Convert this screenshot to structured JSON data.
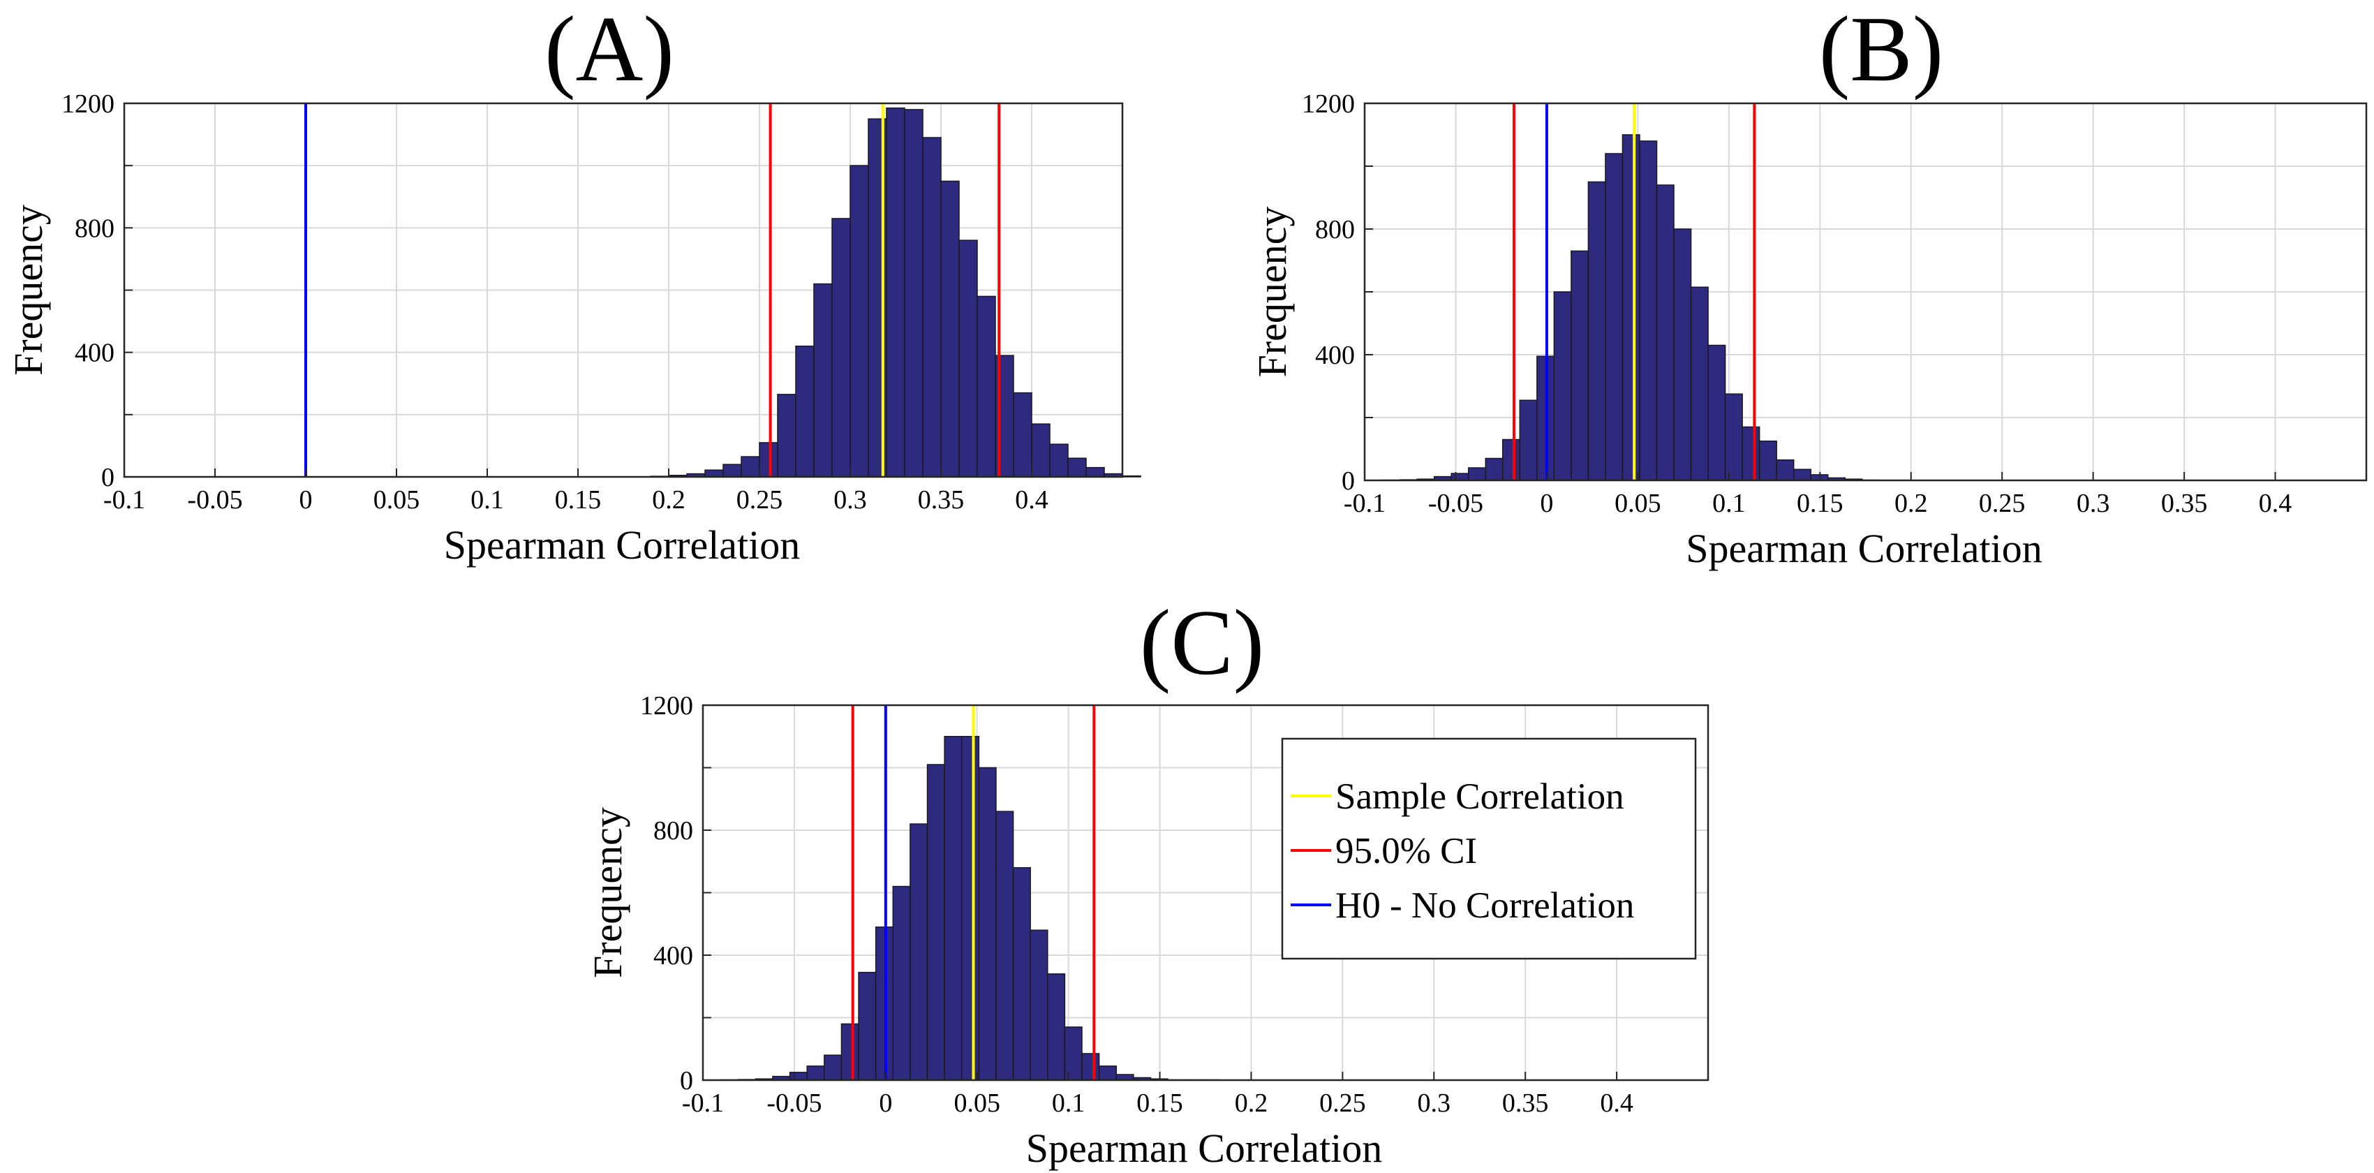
{
  "chart_data": [
    {
      "id": "A",
      "type": "bar",
      "title": "(A)",
      "xlabel": "Spearman Correlation",
      "ylabel": "Frequency",
      "xlim": [
        -0.1,
        0.45
      ],
      "ylim": [
        0,
        1200
      ],
      "xticks": [
        -0.1,
        -0.05,
        0,
        0.05,
        0.1,
        0.15,
        0.2,
        0.25,
        0.3,
        0.35,
        0.4
      ],
      "xtick_labels": [
        "-0.1",
        "-0.05",
        "0",
        "0.05",
        "0.1",
        "0.15",
        "0.2",
        "0.25",
        "0.3",
        "0.35",
        "0.4"
      ],
      "yticks": [
        0,
        200,
        400,
        600,
        800,
        1000,
        1200
      ],
      "ytick_labels": [
        "0",
        "",
        "400",
        "",
        "800",
        "",
        "1200"
      ],
      "bin_start": 0.18,
      "bin_width": 0.01,
      "values": [
        0,
        2,
        5,
        10,
        22,
        40,
        65,
        110,
        265,
        420,
        620,
        830,
        1000,
        1150,
        1185,
        1180,
        1090,
        950,
        760,
        580,
        390,
        270,
        170,
        105,
        60,
        30,
        10,
        3
      ],
      "lines": [
        {
          "name": "Sample Correlation",
          "x": 0.318,
          "color": "#ffff00"
        },
        {
          "name": "95.0% CI",
          "x": 0.256,
          "color": "#ff0000"
        },
        {
          "name": "95.0% CI upper",
          "x": 0.382,
          "color": "#ff0000"
        },
        {
          "name": "H0 - No Correlation",
          "x": 0,
          "color": "#0000ff"
        }
      ]
    },
    {
      "id": "B",
      "type": "bar",
      "title": "(B)",
      "xlabel": "Spearman Correlation",
      "ylabel": "Frequency",
      "xlim": [
        -0.1,
        0.45
      ],
      "ylim": [
        0,
        1200
      ],
      "xticks": [
        -0.1,
        -0.05,
        0,
        0.05,
        0.1,
        0.15,
        0.2,
        0.25,
        0.3,
        0.35,
        0.4
      ],
      "xtick_labels": [
        "-0.1",
        "-0.05",
        "0",
        "0.05",
        "0.1",
        "0.15",
        "0.2",
        "0.25",
        "0.3",
        "0.35",
        "0.4"
      ],
      "yticks": [
        0,
        200,
        400,
        600,
        800,
        1000,
        1200
      ],
      "ytick_labels": [
        "0",
        "",
        "400",
        "",
        "800",
        "",
        "1200"
      ],
      "bin_start": -0.09,
      "bin_width": 0.0094,
      "values": [
        1,
        2,
        4,
        12,
        22,
        40,
        70,
        130,
        255,
        395,
        600,
        730,
        950,
        1040,
        1100,
        1080,
        940,
        800,
        615,
        430,
        275,
        170,
        125,
        65,
        35,
        18,
        8,
        4,
        1
      ],
      "lines": [
        {
          "name": "Sample Correlation",
          "x": 0.048,
          "color": "#ffff00"
        },
        {
          "name": "95.0% CI",
          "x": -0.018,
          "color": "#ff0000"
        },
        {
          "name": "95.0% CI upper",
          "x": 0.114,
          "color": "#ff0000"
        },
        {
          "name": "H0 - No Correlation",
          "x": 0,
          "color": "#0000ff"
        }
      ]
    },
    {
      "id": "C",
      "type": "bar",
      "title": "(C)",
      "xlabel": "Spearman Correlation",
      "ylabel": "Frequency",
      "xlim": [
        -0.1,
        0.45
      ],
      "ylim": [
        0,
        1200
      ],
      "xticks": [
        -0.1,
        -0.05,
        0,
        0.05,
        0.1,
        0.15,
        0.2,
        0.25,
        0.3,
        0.35,
        0.4
      ],
      "xtick_labels": [
        "-0.1",
        "-0.05",
        "0",
        "0.05",
        "0.1",
        "0.15",
        "0.2",
        "0.25",
        "0.3",
        "0.35",
        "0.4"
      ],
      "yticks": [
        0,
        200,
        400,
        600,
        800,
        1000,
        1200
      ],
      "ytick_labels": [
        "0",
        "",
        "400",
        "",
        "800",
        "",
        "1200"
      ],
      "bin_start": -0.09,
      "bin_width": 0.0094,
      "values": [
        1,
        2,
        4,
        12,
        25,
        45,
        80,
        180,
        345,
        490,
        620,
        820,
        1010,
        1100,
        1100,
        1000,
        860,
        680,
        480,
        340,
        170,
        85,
        45,
        18,
        8,
        4,
        1,
        1,
        1
      ],
      "lines": [
        {
          "name": "Sample Correlation",
          "x": 0.048,
          "color": "#ffff00"
        },
        {
          "name": "95.0% CI",
          "x": -0.018,
          "color": "#ff0000"
        },
        {
          "name": "95.0% CI upper",
          "x": 0.114,
          "color": "#ff0000"
        },
        {
          "name": "H0 - No Correlation",
          "x": 0,
          "color": "#0000ff"
        }
      ],
      "legend": {
        "placement": "top-right",
        "entries": [
          {
            "label": "Sample Correlation",
            "color": "#ffff00"
          },
          {
            "label": "95.0% CI",
            "color": "#ff0000"
          },
          {
            "label": "H0 - No Correlation",
            "color": "#0000ff"
          }
        ]
      }
    }
  ],
  "colors": {
    "bar_fill": "#2e2a80",
    "bar_edge": "#1a1a1a"
  }
}
